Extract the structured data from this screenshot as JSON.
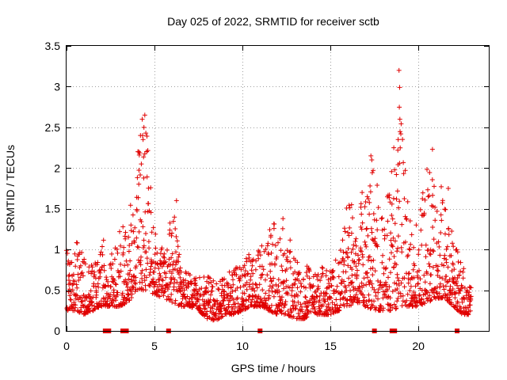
{
  "chart_data": {
    "type": "scatter",
    "title": "Day 025 of 2022, SRMTID for receiver sctb",
    "xlabel": "GPS time / hours",
    "ylabel": "SRMTID / TECUs",
    "xlim": [
      0,
      24
    ],
    "ylim": [
      0,
      3.5
    ],
    "x_ticks": [
      0,
      5,
      10,
      15,
      20
    ],
    "x_tick_labels": [
      "0",
      "5",
      "10",
      "15",
      "20"
    ],
    "y_ticks": [
      0,
      0.5,
      1,
      1.5,
      2,
      2.5,
      3,
      3.5
    ],
    "y_tick_labels": [
      "0",
      "0.5",
      "1",
      "1.5",
      "2",
      "2.5",
      "3",
      "3.5"
    ],
    "grid": true,
    "marker": "plus",
    "series_color": "#e00000",
    "envelope_hours": [
      0,
      0.5,
      1,
      1.5,
      2,
      2.5,
      3,
      3.5,
      4,
      4.5,
      5,
      5.5,
      6,
      6.5,
      7,
      7.5,
      8,
      8.5,
      9,
      9.5,
      10,
      10.5,
      11,
      11.5,
      12,
      12.5,
      13,
      13.5,
      14,
      14.5,
      15,
      15.5,
      16,
      16.5,
      17,
      17.5,
      18,
      18.5,
      19,
      19.5,
      20,
      20.5,
      21,
      21.5,
      22,
      22.5,
      23
    ],
    "envelope_low": [
      0.25,
      0.25,
      0.2,
      0.25,
      0.3,
      0.3,
      0.3,
      0.35,
      0.5,
      0.5,
      0.45,
      0.4,
      0.35,
      0.3,
      0.3,
      0.25,
      0.15,
      0.12,
      0.2,
      0.2,
      0.25,
      0.3,
      0.3,
      0.25,
      0.2,
      0.2,
      0.15,
      0.15,
      0.2,
      0.2,
      0.2,
      0.25,
      0.3,
      0.35,
      0.3,
      0.25,
      0.25,
      0.25,
      0.3,
      0.3,
      0.3,
      0.35,
      0.4,
      0.4,
      0.3,
      0.2,
      0.2
    ],
    "envelope_high": [
      1.0,
      1.2,
      0.9,
      0.8,
      1.2,
      0.9,
      1.3,
      1.3,
      2.2,
      2.6,
      1.3,
      1.0,
      1.6,
      0.8,
      0.7,
      0.65,
      0.7,
      0.6,
      0.75,
      0.75,
      0.85,
      1.0,
      1.0,
      1.3,
      1.35,
      1.3,
      0.9,
      0.85,
      0.75,
      0.8,
      0.75,
      1.0,
      1.6,
      1.3,
      1.9,
      2.15,
      1.5,
      2.0,
      3.2,
      1.5,
      1.3,
      2.23,
      1.7,
      1.75,
      1.25,
      0.8,
      0.6
    ],
    "spike_points": [
      [
        4.3,
        2.6
      ],
      [
        4.45,
        2.65
      ],
      [
        4.4,
        2.5
      ],
      [
        4.2,
        2.4
      ],
      [
        4.35,
        2.35
      ],
      [
        4.1,
        2.2
      ],
      [
        4.25,
        2.05
      ],
      [
        6.25,
        1.6
      ],
      [
        12.3,
        1.38
      ],
      [
        17.3,
        2.15
      ],
      [
        17.35,
        2.1
      ],
      [
        17.25,
        1.78
      ],
      [
        18.6,
        2.25
      ],
      [
        18.75,
        1.92
      ],
      [
        18.9,
        3.2
      ],
      [
        18.95,
        2.6
      ],
      [
        19.0,
        2.42
      ],
      [
        18.85,
        2.35
      ],
      [
        20.8,
        2.23
      ],
      [
        21.3,
        1.77
      ],
      [
        21.7,
        1.75
      ],
      [
        16.2,
        1.55
      ],
      [
        16.8,
        1.7
      ]
    ],
    "gap_markers_hours": [
      2.2,
      2.4,
      3.2,
      3.4,
      5.8,
      11.0,
      17.5,
      18.5,
      18.65,
      22.2
    ]
  }
}
